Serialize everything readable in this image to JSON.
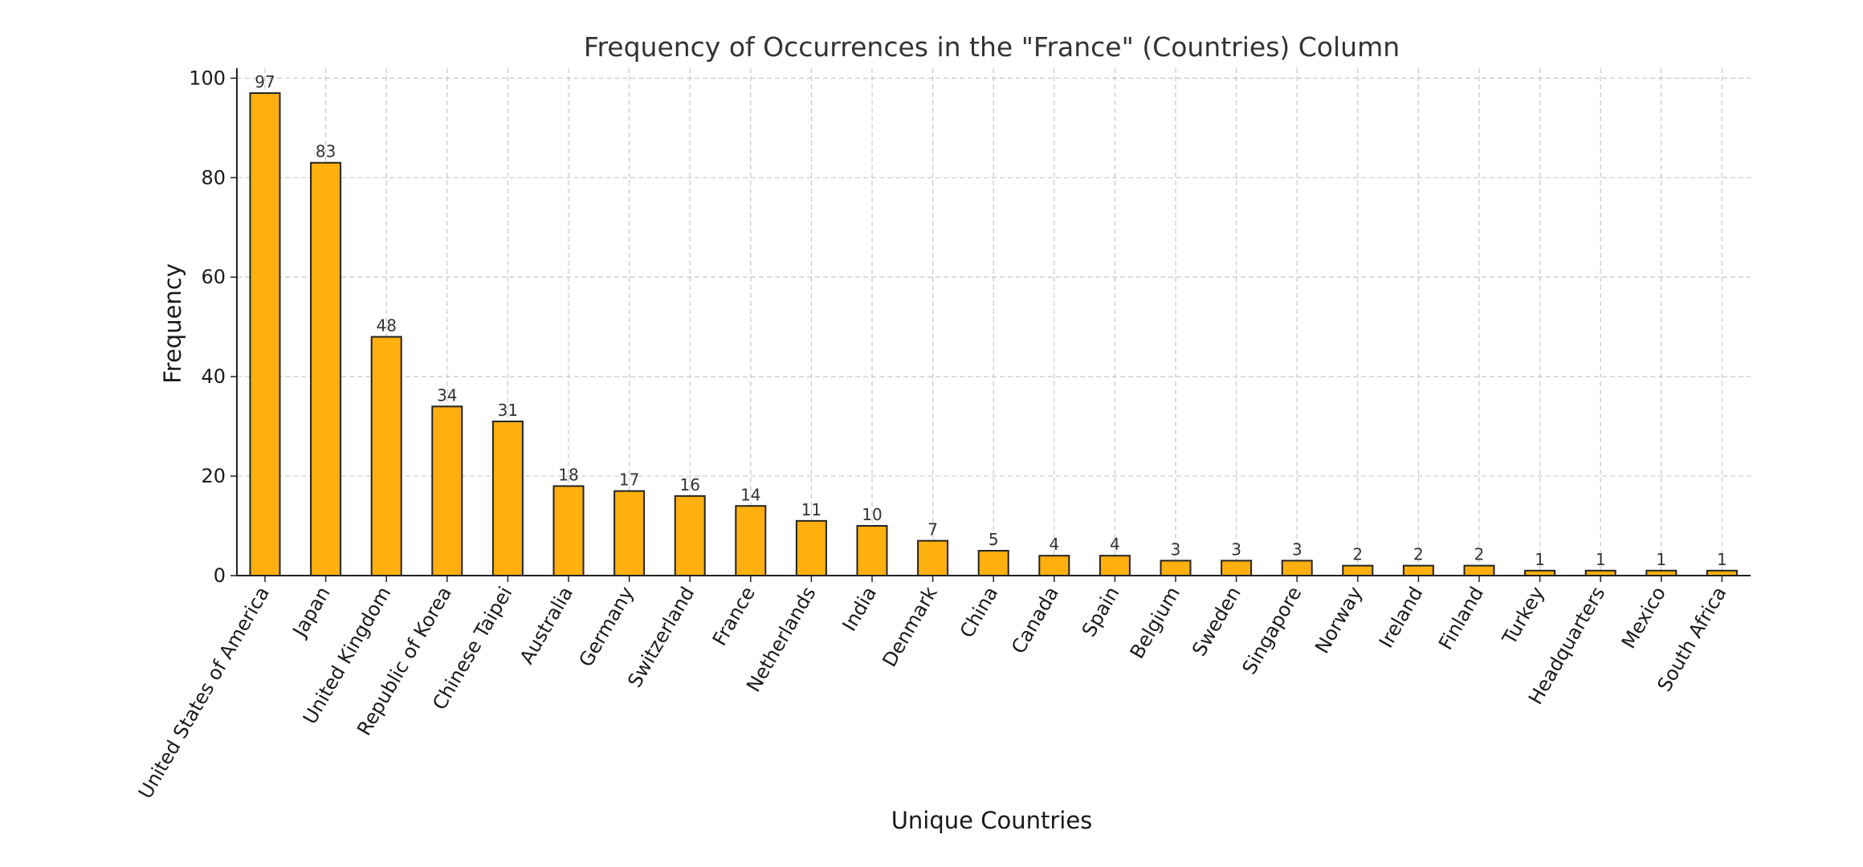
{
  "chart_data": {
    "type": "bar",
    "title": "Frequency of Occurrences in the \"France\" (Countries) Column",
    "xlabel": "Unique Countries",
    "ylabel": "Frequency",
    "categories": [
      "United States of America",
      "Japan",
      "United Kingdom",
      "Republic of Korea",
      "Chinese Taipei",
      "Australia",
      "Germany",
      "Switzerland",
      "France",
      "Netherlands",
      "India",
      "Denmark",
      "China",
      "Canada",
      "Spain",
      "Belgium",
      "Sweden",
      "Singapore",
      "Norway",
      "Ireland",
      "Finland",
      "Turkey",
      "Headquarters",
      "Mexico",
      "South Africa"
    ],
    "values": [
      97,
      83,
      48,
      34,
      31,
      18,
      17,
      16,
      14,
      11,
      10,
      7,
      5,
      4,
      4,
      3,
      3,
      3,
      2,
      2,
      2,
      1,
      1,
      1,
      1
    ],
    "value_labels": [
      "97",
      "83",
      "48",
      "34",
      "31",
      "18",
      "17",
      "16",
      "14",
      "11",
      "10",
      "7",
      "5",
      "4",
      "4",
      "3",
      "3",
      "3",
      "2",
      "2",
      "2",
      "1",
      "1",
      "1",
      "1"
    ],
    "ylim": [
      0,
      102
    ],
    "yticks": [
      0,
      20,
      40,
      60,
      80,
      100
    ],
    "ytick_labels": [
      "0",
      "20",
      "40",
      "60",
      "80",
      "100"
    ],
    "grid": true,
    "legend": "none",
    "bar_color": "#FFB00F",
    "edge_color": "#222222"
  }
}
